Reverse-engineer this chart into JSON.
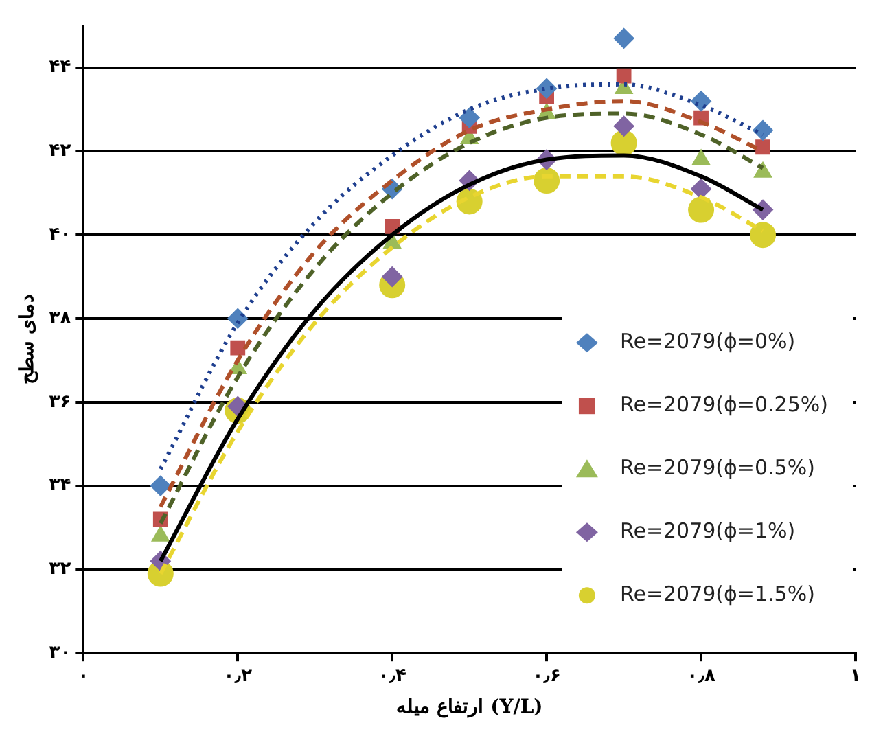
{
  "chart_data": {
    "type": "scatter",
    "xlabel": "ارتفاع میله (Y/L)",
    "ylabel": "دمای سطح",
    "xlim": [
      0,
      1
    ],
    "ylim": [
      30,
      45
    ],
    "xticks": [
      {
        "value": 0,
        "label": "۰"
      },
      {
        "value": 0.2,
        "label": "۰٫۲"
      },
      {
        "value": 0.4,
        "label": "۰٫۴"
      },
      {
        "value": 0.6,
        "label": "۰٫۶"
      },
      {
        "value": 0.8,
        "label": "۰٫۸"
      },
      {
        "value": 1,
        "label": "۱"
      }
    ],
    "yticks": [
      {
        "value": 30,
        "label": "۳۰"
      },
      {
        "value": 32,
        "label": "۳۲"
      },
      {
        "value": 34,
        "label": "۳۴"
      },
      {
        "value": 36,
        "label": "۳۶"
      },
      {
        "value": 38,
        "label": "۳۸"
      },
      {
        "value": 40,
        "label": "۴۰"
      },
      {
        "value": 42,
        "label": "۴۲"
      },
      {
        "value": 44,
        "label": "۴۴"
      }
    ],
    "grid": "y",
    "legend": "bottom right",
    "x": [
      0.1,
      0.2,
      0.4,
      0.5,
      0.6,
      0.7,
      0.8,
      0.88
    ],
    "series": [
      {
        "name": "Re=2079(ϕ=0%)",
        "color": "#4f81bd",
        "marker": "diamond",
        "values": [
          34.0,
          38.0,
          41.1,
          42.8,
          43.5,
          44.7,
          43.2,
          42.5
        ]
      },
      {
        "name": "Re=2079(ϕ=0.25%)",
        "color": "#c0504d",
        "marker": "square",
        "values": [
          33.2,
          37.3,
          40.2,
          42.6,
          43.3,
          43.8,
          42.8,
          42.1
        ]
      },
      {
        "name": "Re=2079(ϕ=0.5%)",
        "color": "#9bbb59",
        "marker": "triangle",
        "values": [
          32.8,
          36.8,
          39.8,
          42.3,
          42.9,
          43.5,
          41.8,
          41.5
        ]
      },
      {
        "name": "Re=2079(ϕ=1%)",
        "color": "#8064a2",
        "marker": "diamond",
        "values": [
          32.2,
          35.9,
          39.0,
          41.3,
          41.8,
          42.6,
          41.1,
          40.6
        ]
      },
      {
        "name": "Re=2079(ϕ=1.5%)",
        "color": "#d8d030",
        "marker": "circle",
        "values": [
          31.9,
          35.8,
          38.8,
          40.8,
          41.3,
          42.2,
          40.6,
          40.0
        ]
      },
      {
        "type": "line",
        "color": "#1f3f8f",
        "line_style": "dotted",
        "marker": "none",
        "x": [
          0.1,
          0.2,
          0.3,
          0.4,
          0.5,
          0.6,
          0.7,
          0.8,
          0.88
        ],
        "values": [
          34.4,
          37.9,
          40.3,
          41.9,
          43.0,
          43.5,
          43.6,
          43.1,
          42.4
        ]
      },
      {
        "type": "line",
        "color": "#b0502a",
        "line_style": "dashed",
        "marker": "none",
        "x": [
          0.1,
          0.2,
          0.3,
          0.4,
          0.5,
          0.6,
          0.7,
          0.8,
          0.88
        ],
        "values": [
          33.5,
          37.0,
          39.6,
          41.3,
          42.5,
          43.0,
          43.2,
          42.7,
          42.0
        ]
      },
      {
        "type": "line",
        "color": "#4f6228",
        "line_style": "dashed",
        "marker": "none",
        "x": [
          0.1,
          0.2,
          0.3,
          0.4,
          0.5,
          0.6,
          0.7,
          0.8,
          0.88
        ],
        "values": [
          33.1,
          36.6,
          39.2,
          41.0,
          42.2,
          42.8,
          42.9,
          42.4,
          41.6
        ]
      },
      {
        "type": "line",
        "color": "#000000",
        "line_style": "solid",
        "marker": "none",
        "x": [
          0.1,
          0.2,
          0.3,
          0.4,
          0.5,
          0.6,
          0.7,
          0.8,
          0.88
        ],
        "values": [
          32.2,
          35.6,
          38.2,
          40.0,
          41.2,
          41.8,
          41.9,
          41.4,
          40.6
        ]
      },
      {
        "type": "line",
        "color": "#e8d530",
        "line_style": "dashed",
        "marker": "none",
        "x": [
          0.1,
          0.2,
          0.3,
          0.4,
          0.5,
          0.6,
          0.7,
          0.8,
          0.88
        ],
        "values": [
          31.9,
          35.3,
          37.9,
          39.7,
          40.9,
          41.4,
          41.4,
          40.9,
          40.1
        ]
      }
    ]
  }
}
